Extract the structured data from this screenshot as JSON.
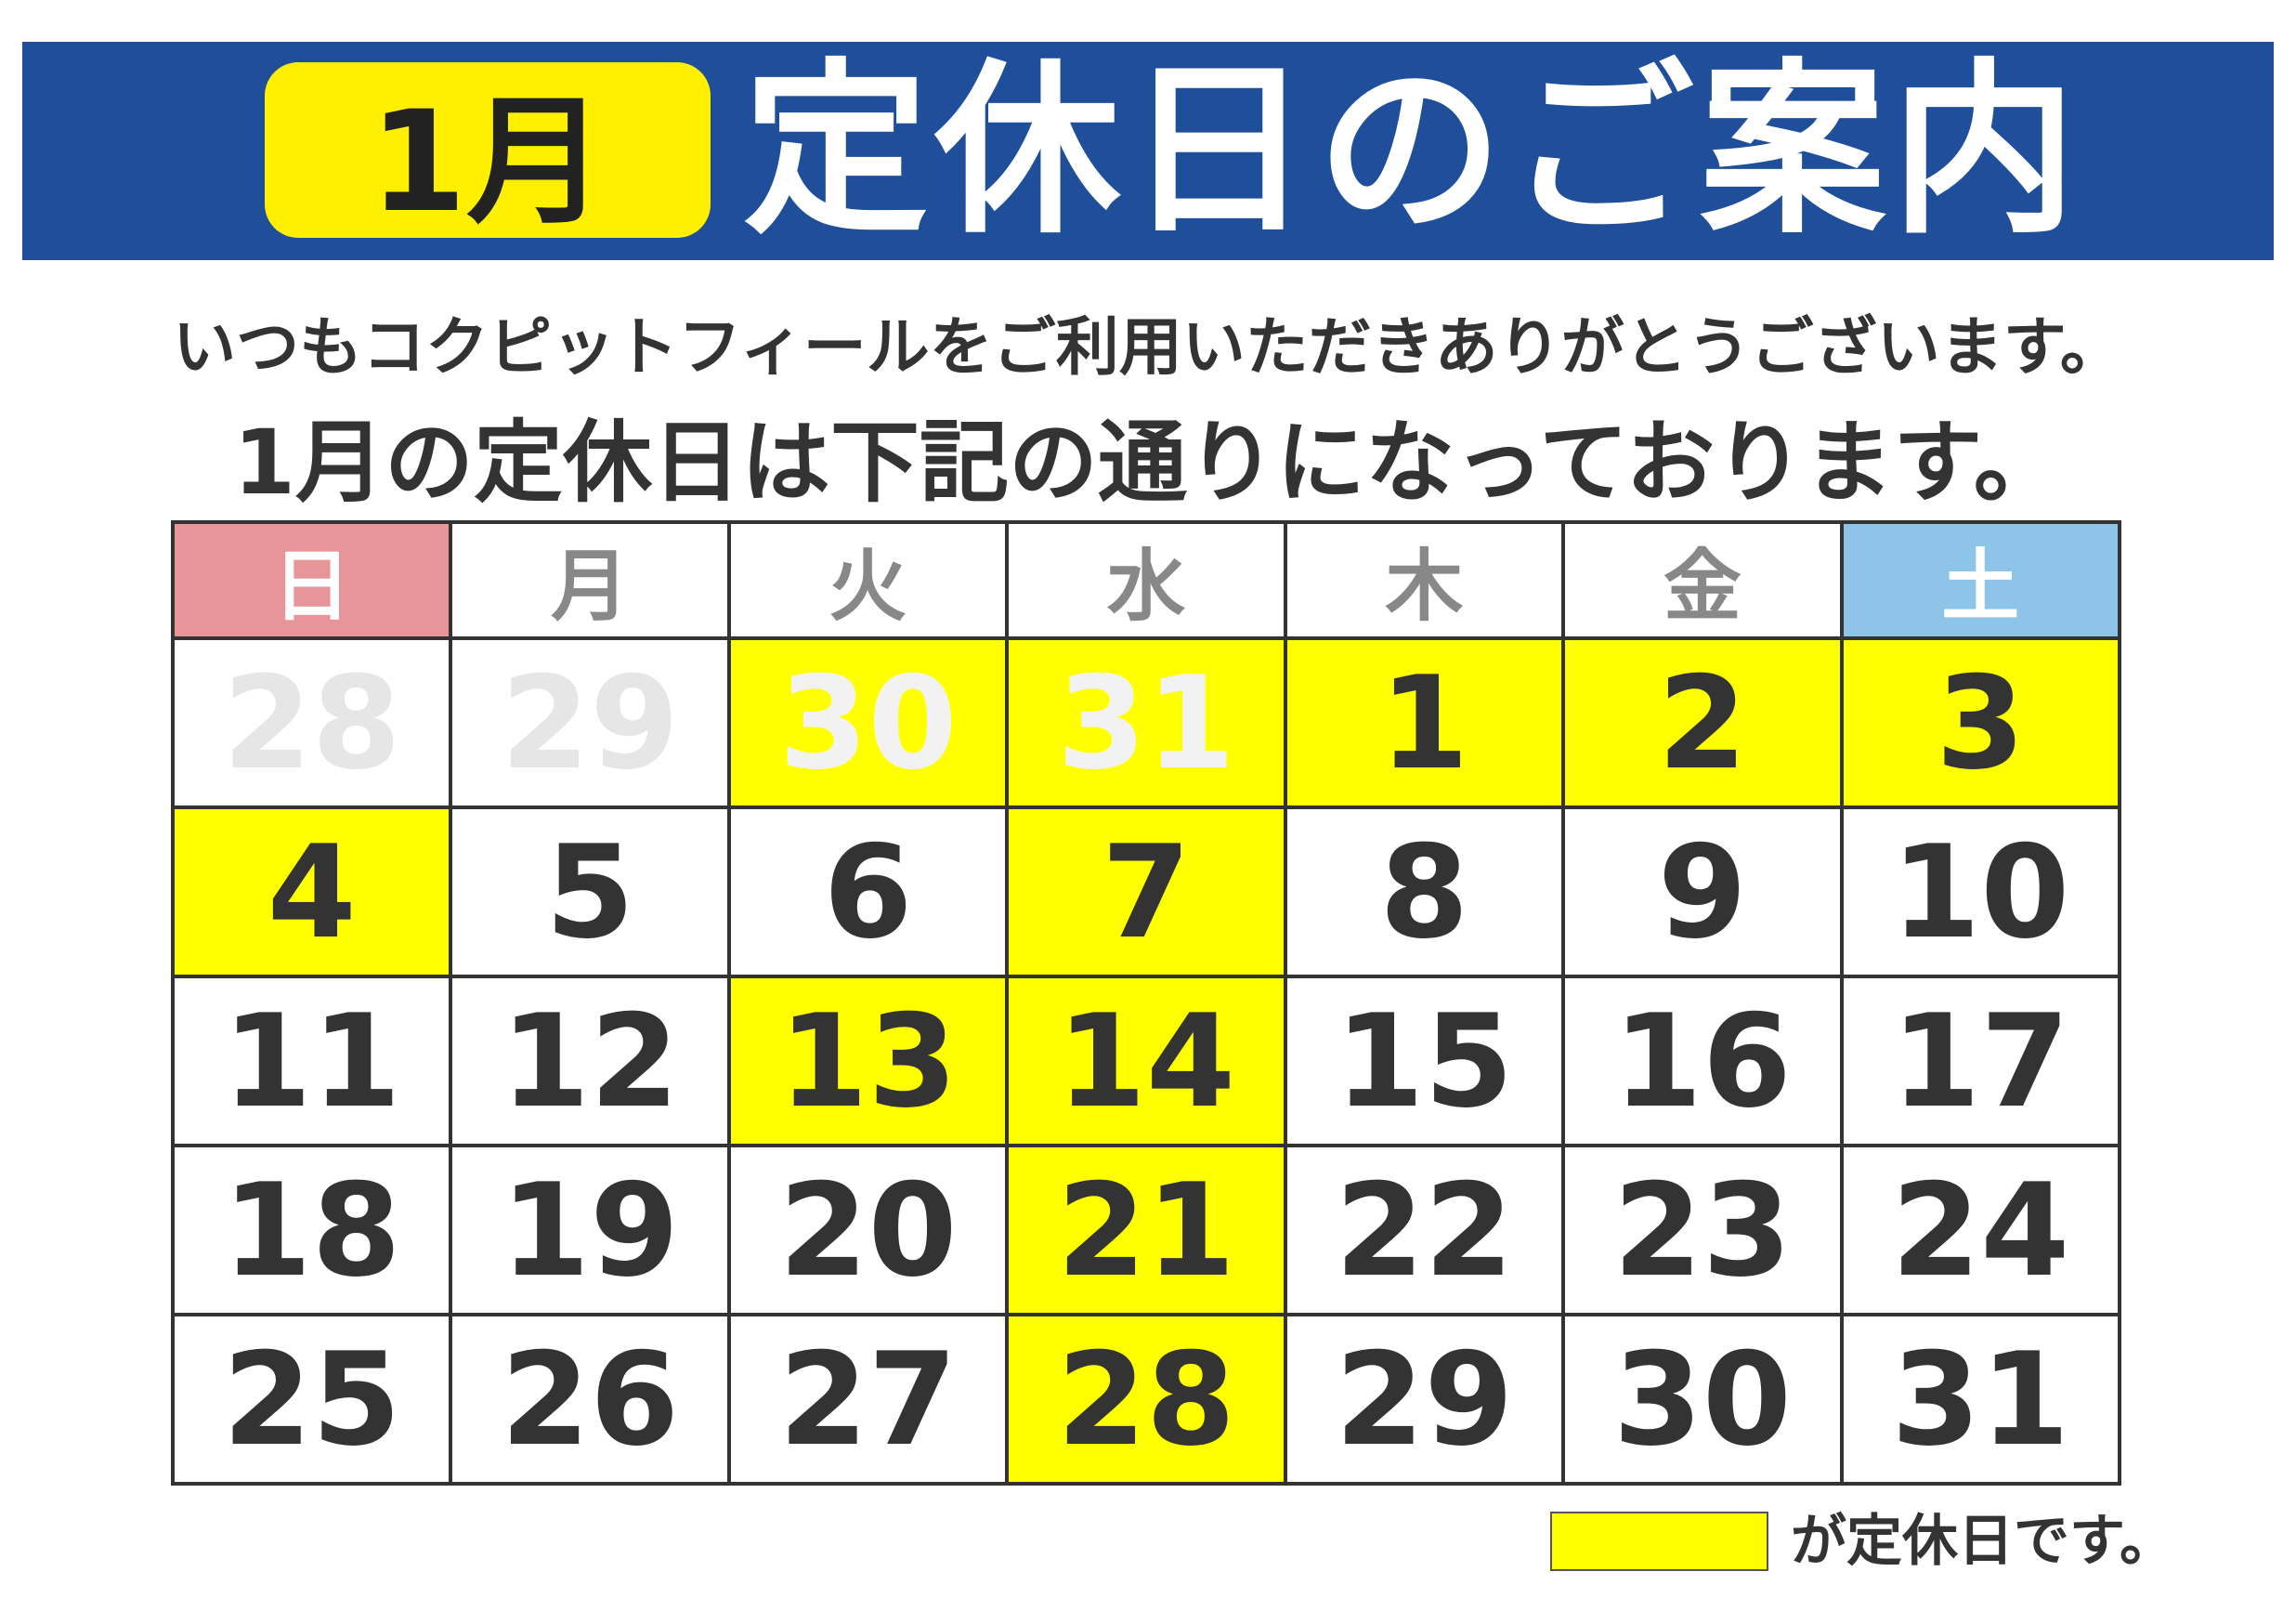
{
  "header": {
    "month": "1月",
    "title": "定休日のご案内"
  },
  "message": {
    "line1": "いつもコクピットフィールをご利用いただきありがとうございます。",
    "line2": "1月の定休日は下記の通りになっております。"
  },
  "calendar": {
    "weekdays": [
      "日",
      "月",
      "火",
      "水",
      "木",
      "金",
      "土"
    ],
    "weeks": [
      [
        {
          "day": 28,
          "closed": false,
          "other_month": true
        },
        {
          "day": 29,
          "closed": false,
          "other_month": true
        },
        {
          "day": 30,
          "closed": true,
          "other_month": true
        },
        {
          "day": 31,
          "closed": true,
          "other_month": true
        },
        {
          "day": 1,
          "closed": true,
          "other_month": false
        },
        {
          "day": 2,
          "closed": true,
          "other_month": false
        },
        {
          "day": 3,
          "closed": true,
          "other_month": false
        }
      ],
      [
        {
          "day": 4,
          "closed": true,
          "other_month": false
        },
        {
          "day": 5,
          "closed": false,
          "other_month": false
        },
        {
          "day": 6,
          "closed": false,
          "other_month": false
        },
        {
          "day": 7,
          "closed": true,
          "other_month": false
        },
        {
          "day": 8,
          "closed": false,
          "other_month": false
        },
        {
          "day": 9,
          "closed": false,
          "other_month": false
        },
        {
          "day": 10,
          "closed": false,
          "other_month": false
        }
      ],
      [
        {
          "day": 11,
          "closed": false,
          "other_month": false
        },
        {
          "day": 12,
          "closed": false,
          "other_month": false
        },
        {
          "day": 13,
          "closed": true,
          "other_month": false
        },
        {
          "day": 14,
          "closed": true,
          "other_month": false
        },
        {
          "day": 15,
          "closed": false,
          "other_month": false
        },
        {
          "day": 16,
          "closed": false,
          "other_month": false
        },
        {
          "day": 17,
          "closed": false,
          "other_month": false
        }
      ],
      [
        {
          "day": 18,
          "closed": false,
          "other_month": false
        },
        {
          "day": 19,
          "closed": false,
          "other_month": false
        },
        {
          "day": 20,
          "closed": false,
          "other_month": false
        },
        {
          "day": 21,
          "closed": true,
          "other_month": false
        },
        {
          "day": 22,
          "closed": false,
          "other_month": false
        },
        {
          "day": 23,
          "closed": false,
          "other_month": false
        },
        {
          "day": 24,
          "closed": false,
          "other_month": false
        }
      ],
      [
        {
          "day": 25,
          "closed": false,
          "other_month": false
        },
        {
          "day": 26,
          "closed": false,
          "other_month": false
        },
        {
          "day": 27,
          "closed": false,
          "other_month": false
        },
        {
          "day": 28,
          "closed": true,
          "other_month": false
        },
        {
          "day": 29,
          "closed": false,
          "other_month": false
        },
        {
          "day": 30,
          "closed": false,
          "other_month": false
        },
        {
          "day": 31,
          "closed": false,
          "other_month": false
        }
      ]
    ]
  },
  "legend": {
    "text": "が定休日です。"
  }
}
